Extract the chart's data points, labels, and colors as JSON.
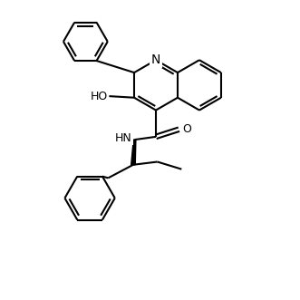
{
  "bg_color": "#ffffff",
  "line_color": "#000000",
  "line_width": 1.5,
  "font_size": 9,
  "figsize": [
    3.31,
    3.31
  ],
  "dpi": 100,
  "xlim": [
    0,
    10
  ],
  "ylim": [
    0,
    10
  ]
}
